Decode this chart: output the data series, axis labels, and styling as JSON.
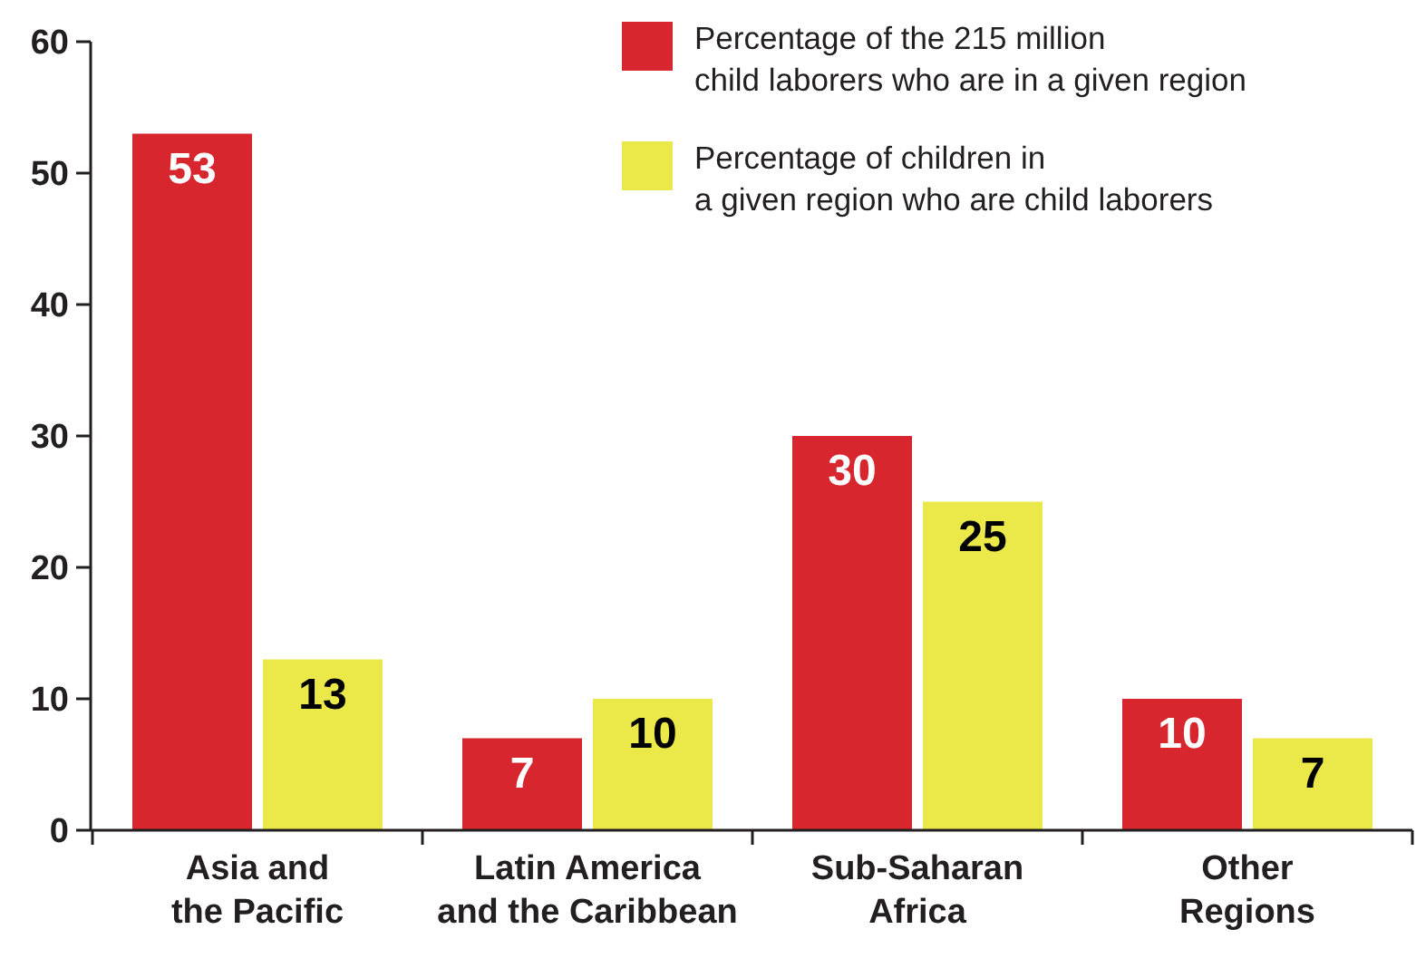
{
  "chart_data": {
    "type": "bar",
    "categories": [
      "Asia and\nthe Pacific",
      "Latin America\nand the Caribbean",
      "Sub-Saharan\nAfrica",
      "Other\nRegions"
    ],
    "series": [
      {
        "name": "Percentage of the 215 million\nchild laborers who are in a given region",
        "color": "#d7262d",
        "values": [
          53,
          7,
          30,
          10
        ]
      },
      {
        "name": "Percentage of children in\na given region who are child laborers",
        "color": "#ebe84a",
        "values": [
          13,
          10,
          25,
          7
        ]
      }
    ],
    "ylim": [
      0,
      60
    ],
    "yticks": [
      0,
      10,
      20,
      30,
      40,
      50,
      60
    ],
    "grid": false,
    "legend": "top right",
    "data_labels": true
  }
}
